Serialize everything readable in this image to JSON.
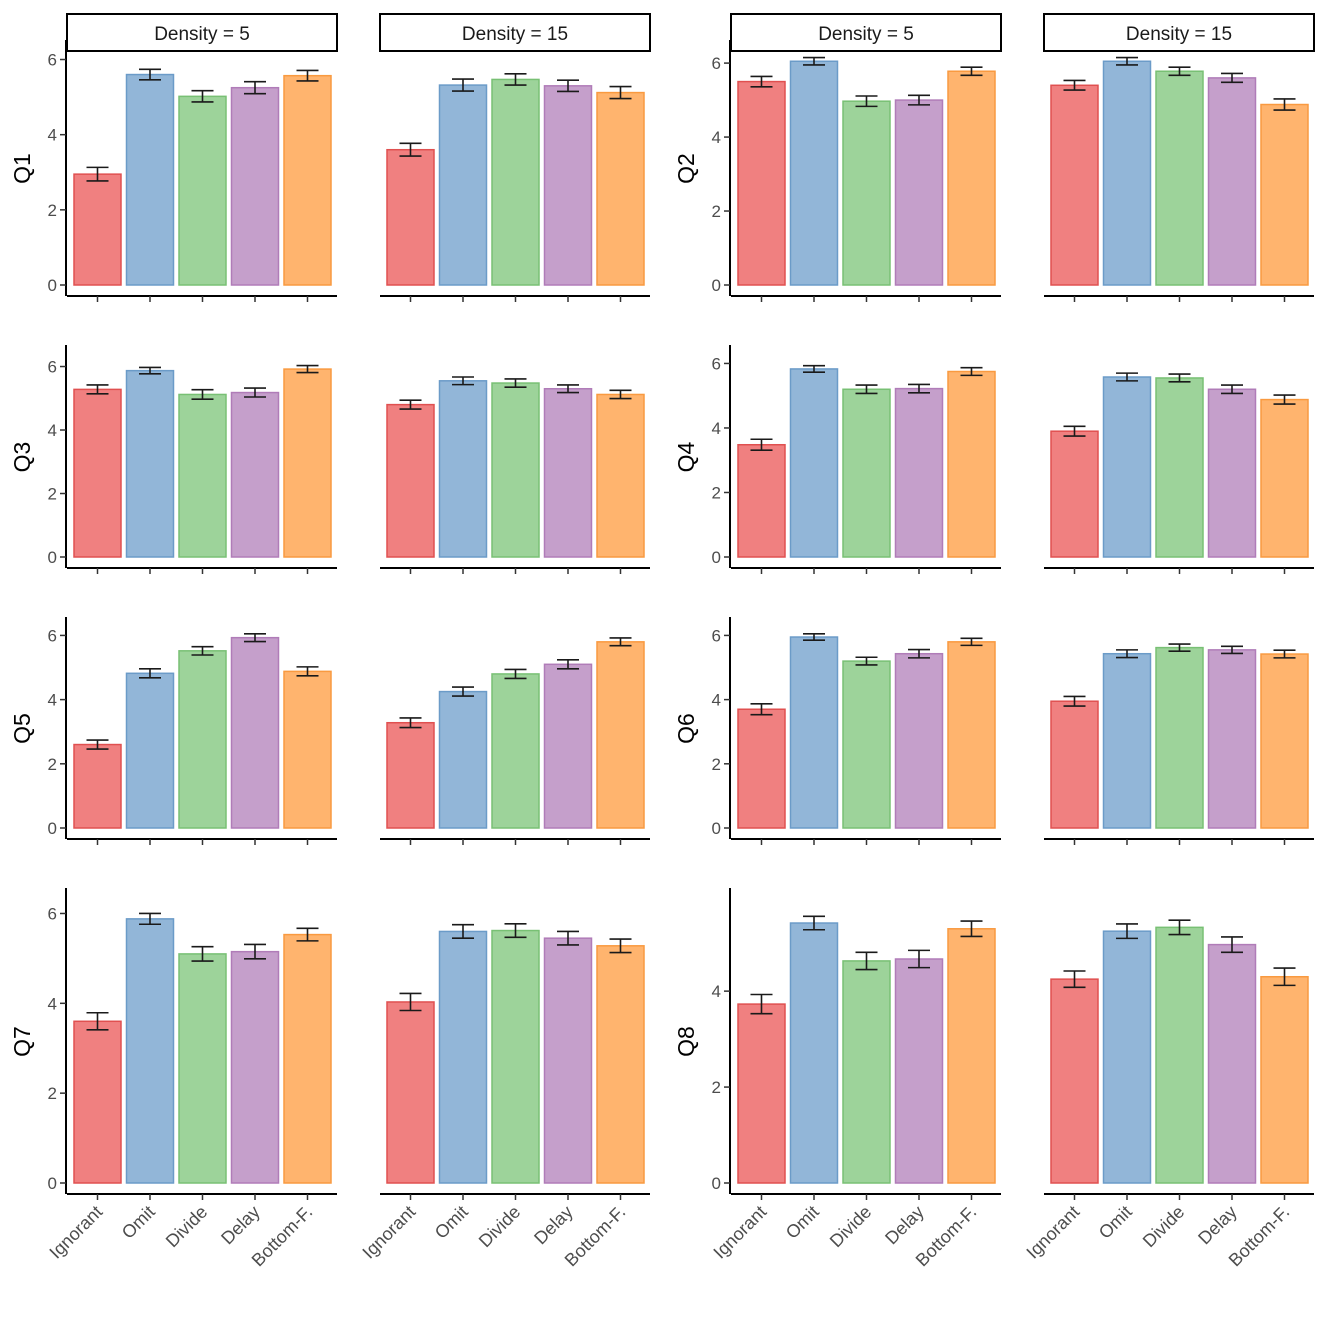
{
  "chart_data": {
    "type": "bar",
    "layout": "faceted grid: 4 rows x 4 columns (question x density facet)",
    "categories": [
      "Ignorant",
      "Omit",
      "Divide",
      "Delay",
      "Bottom-F."
    ],
    "colors": {
      "Ignorant": {
        "fill": "#f08080",
        "stroke": "#e05050"
      },
      "Omit": {
        "fill": "#92b6d8",
        "stroke": "#6b9bc8"
      },
      "Divide": {
        "fill": "#9dd39a",
        "stroke": "#78c074"
      },
      "Delay": {
        "fill": "#c59fcb",
        "stroke": "#b07cb8"
      },
      "Bottom-F.": {
        "fill": "#ffb46e",
        "stroke": "#f99a40"
      }
    },
    "facet_labels": [
      "Density = 5",
      "Density = 15",
      "Density = 5",
      "Density = 15"
    ],
    "panels": [
      {
        "question": "Q1",
        "density_facet": "Density = 5",
        "ylim": [
          0,
          6.2
        ],
        "yticks": [
          0,
          2,
          4,
          6
        ],
        "show_yaxis": true,
        "values": [
          2.95,
          5.6,
          5.02,
          5.25,
          5.57
        ],
        "errors": [
          0.18,
          0.14,
          0.15,
          0.16,
          0.14
        ]
      },
      {
        "question": "Q1",
        "density_facet": "Density = 15",
        "ylim": [
          0,
          6.2
        ],
        "yticks": [
          0,
          2,
          4,
          6
        ],
        "show_yaxis": false,
        "values": [
          3.6,
          5.32,
          5.47,
          5.3,
          5.12
        ],
        "errors": [
          0.17,
          0.16,
          0.15,
          0.15,
          0.16
        ]
      },
      {
        "question": "Q2",
        "density_facet": "Density = 5",
        "ylim": [
          0,
          6.3
        ],
        "yticks": [
          0,
          2,
          4,
          6
        ],
        "show_yaxis": true,
        "values": [
          5.5,
          6.05,
          4.97,
          5.0,
          5.78
        ],
        "errors": [
          0.14,
          0.1,
          0.14,
          0.13,
          0.11
        ]
      },
      {
        "question": "Q2",
        "density_facet": "Density = 15",
        "ylim": [
          0,
          6.3
        ],
        "yticks": [
          0,
          2,
          4,
          6
        ],
        "show_yaxis": false,
        "values": [
          5.4,
          6.05,
          5.78,
          5.6,
          4.88
        ],
        "errors": [
          0.13,
          0.1,
          0.11,
          0.12,
          0.15
        ]
      },
      {
        "question": "Q3",
        "density_facet": "Density = 5",
        "ylim": [
          0,
          6.3
        ],
        "yticks": [
          0,
          2,
          4,
          6
        ],
        "show_yaxis": true,
        "values": [
          5.28,
          5.87,
          5.12,
          5.18,
          5.92
        ],
        "errors": [
          0.14,
          0.1,
          0.15,
          0.14,
          0.11
        ]
      },
      {
        "question": "Q3",
        "density_facet": "Density = 15",
        "ylim": [
          0,
          6.3
        ],
        "yticks": [
          0,
          2,
          4,
          6
        ],
        "show_yaxis": false,
        "values": [
          4.8,
          5.55,
          5.48,
          5.3,
          5.12
        ],
        "errors": [
          0.14,
          0.12,
          0.13,
          0.12,
          0.13
        ]
      },
      {
        "question": "Q4",
        "density_facet": "Density = 5",
        "ylim": [
          0,
          6.2
        ],
        "yticks": [
          0,
          2,
          4,
          6
        ],
        "show_yaxis": true,
        "values": [
          3.48,
          5.83,
          5.2,
          5.22,
          5.75
        ],
        "errors": [
          0.17,
          0.1,
          0.13,
          0.13,
          0.12
        ]
      },
      {
        "question": "Q4",
        "density_facet": "Density = 15",
        "ylim": [
          0,
          6.2
        ],
        "yticks": [
          0,
          2,
          4,
          6
        ],
        "show_yaxis": false,
        "values": [
          3.9,
          5.58,
          5.55,
          5.2,
          4.88
        ],
        "errors": [
          0.15,
          0.12,
          0.12,
          0.13,
          0.14
        ]
      },
      {
        "question": "Q5",
        "density_facet": "Density = 5",
        "ylim": [
          0,
          6.2
        ],
        "yticks": [
          0,
          2,
          4,
          6
        ],
        "show_yaxis": true,
        "values": [
          2.6,
          4.82,
          5.52,
          5.93,
          4.88
        ],
        "errors": [
          0.14,
          0.14,
          0.13,
          0.12,
          0.14
        ]
      },
      {
        "question": "Q5",
        "density_facet": "Density = 15",
        "ylim": [
          0,
          6.2
        ],
        "yticks": [
          0,
          2,
          4,
          6
        ],
        "show_yaxis": false,
        "values": [
          3.28,
          4.25,
          4.8,
          5.1,
          5.8
        ],
        "errors": [
          0.15,
          0.14,
          0.14,
          0.14,
          0.12
        ]
      },
      {
        "question": "Q6",
        "density_facet": "Density = 5",
        "ylim": [
          0,
          6.2
        ],
        "yticks": [
          0,
          2,
          4,
          6
        ],
        "show_yaxis": true,
        "values": [
          3.7,
          5.95,
          5.2,
          5.43,
          5.8
        ],
        "errors": [
          0.17,
          0.1,
          0.12,
          0.13,
          0.11
        ]
      },
      {
        "question": "Q6",
        "density_facet": "Density = 15",
        "ylim": [
          0,
          6.2
        ],
        "yticks": [
          0,
          2,
          4,
          6
        ],
        "show_yaxis": false,
        "values": [
          3.95,
          5.43,
          5.62,
          5.55,
          5.42
        ],
        "errors": [
          0.15,
          0.12,
          0.11,
          0.11,
          0.12
        ]
      },
      {
        "question": "Q7",
        "density_facet": "Density = 5",
        "ylim": [
          0,
          6.3
        ],
        "yticks": [
          0,
          2,
          4,
          6
        ],
        "show_yaxis": true,
        "values": [
          3.6,
          5.88,
          5.1,
          5.15,
          5.53
        ],
        "errors": [
          0.19,
          0.12,
          0.16,
          0.16,
          0.14
        ]
      },
      {
        "question": "Q7",
        "density_facet": "Density = 15",
        "ylim": [
          0,
          6.3
        ],
        "yticks": [
          0,
          2,
          4,
          6
        ],
        "show_yaxis": false,
        "values": [
          4.03,
          5.6,
          5.62,
          5.45,
          5.28
        ],
        "errors": [
          0.19,
          0.15,
          0.15,
          0.15,
          0.15
        ]
      },
      {
        "question": "Q8",
        "density_facet": "Density = 5",
        "ylim": [
          0,
          5.9
        ],
        "yticks": [
          0,
          2,
          4
        ],
        "show_yaxis": true,
        "values": [
          3.73,
          5.42,
          4.63,
          4.67,
          5.3
        ],
        "errors": [
          0.2,
          0.14,
          0.18,
          0.18,
          0.16
        ]
      },
      {
        "question": "Q8",
        "density_facet": "Density = 15",
        "ylim": [
          0,
          5.9
        ],
        "yticks": [
          0,
          2,
          4
        ],
        "show_yaxis": false,
        "values": [
          4.25,
          5.25,
          5.33,
          4.97,
          4.3
        ],
        "errors": [
          0.17,
          0.15,
          0.15,
          0.16,
          0.18
        ]
      }
    ]
  }
}
